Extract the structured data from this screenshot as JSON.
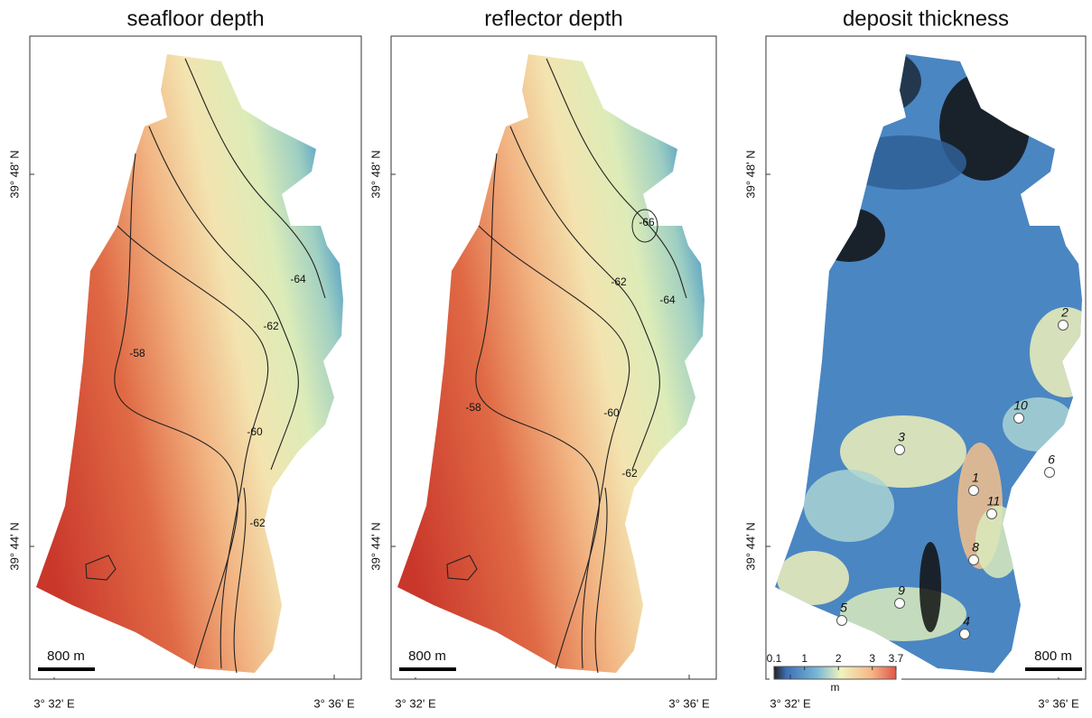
{
  "panels": [
    {
      "title": "seafloor depth",
      "lat_labels": [
        "39° 48' N",
        "39° 44' N"
      ],
      "lon_labels": [
        "3° 32' E",
        "3° 36' E"
      ],
      "scale_bar": "800 m",
      "contour_labels": [
        "-64",
        "-62",
        "-58",
        "-60",
        "-62"
      ]
    },
    {
      "title": "reflector depth",
      "lat_labels": [
        "39° 48' N",
        "39° 44' N"
      ],
      "lon_labels": [
        "3° 32' E",
        "3° 36' E"
      ],
      "scale_bar": "800 m",
      "contour_labels": [
        "-66",
        "-62",
        "-64",
        "-58",
        "-60",
        "-62"
      ]
    },
    {
      "title": "deposit thickness",
      "lat_labels": [
        "39° 48' N",
        "39° 44' N"
      ],
      "lon_labels": [
        "3° 32' E",
        "3° 36' E"
      ],
      "scale_bar": "800 m",
      "points": [
        "1",
        "2",
        "3",
        "4",
        "5",
        "6",
        "8",
        "9",
        "10",
        "11"
      ],
      "colorbar": {
        "ticks": [
          0.1,
          1,
          2,
          3,
          3.7
        ],
        "unit": "m"
      }
    }
  ]
}
